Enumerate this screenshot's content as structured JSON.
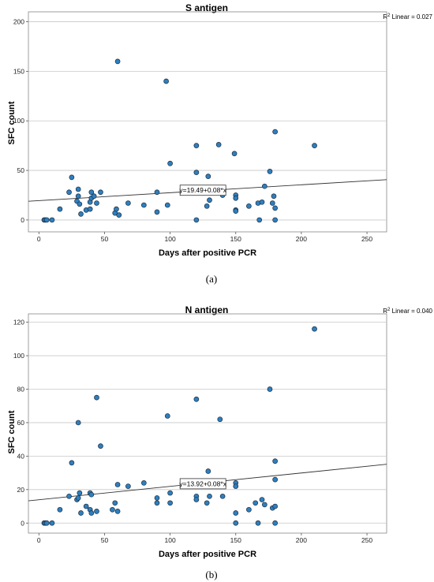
{
  "chart_data": [
    {
      "type": "scatter",
      "title": "S antigen",
      "panel_label": "(a)",
      "xlabel": "Days after positive PCR",
      "ylabel": "SFC count",
      "xlim": [
        -8,
        265
      ],
      "ylim": [
        -12,
        210
      ],
      "xticks": [
        0,
        50,
        100,
        150,
        200,
        250
      ],
      "yticks": [
        0,
        50,
        100,
        150,
        200
      ],
      "grid": "horizontal",
      "r2_prefix": "R",
      "r2_suffix": " Linear = 0.027",
      "fit": {
        "intercept": 19.49,
        "slope": 0.08,
        "label": "y=19.49+0.08*x",
        "label_x": 125,
        "label_y": 30
      },
      "points": [
        [
          4,
          0
        ],
        [
          5,
          0
        ],
        [
          6,
          0
        ],
        [
          10,
          0
        ],
        [
          16,
          11
        ],
        [
          23,
          28
        ],
        [
          25,
          43
        ],
        [
          29,
          19
        ],
        [
          30,
          24
        ],
        [
          30,
          31
        ],
        [
          31,
          16
        ],
        [
          32,
          6
        ],
        [
          36,
          10
        ],
        [
          39,
          11
        ],
        [
          39,
          18
        ],
        [
          40,
          28
        ],
        [
          40,
          22
        ],
        [
          42,
          24
        ],
        [
          44,
          17
        ],
        [
          47,
          28
        ],
        [
          58,
          7
        ],
        [
          59,
          11
        ],
        [
          60,
          160
        ],
        [
          61,
          5
        ],
        [
          68,
          17
        ],
        [
          80,
          15
        ],
        [
          90,
          8
        ],
        [
          90,
          28
        ],
        [
          97,
          140
        ],
        [
          98,
          15
        ],
        [
          100,
          57
        ],
        [
          120,
          48
        ],
        [
          120,
          75
        ],
        [
          120,
          0
        ],
        [
          128,
          14
        ],
        [
          129,
          44
        ],
        [
          130,
          20
        ],
        [
          137,
          76
        ],
        [
          140,
          25
        ],
        [
          149,
          67
        ],
        [
          150,
          25
        ],
        [
          150,
          22
        ],
        [
          150,
          10
        ],
        [
          150,
          9
        ],
        [
          160,
          14
        ],
        [
          167,
          17
        ],
        [
          168,
          0
        ],
        [
          170,
          18
        ],
        [
          172,
          34
        ],
        [
          176,
          49
        ],
        [
          178,
          17
        ],
        [
          179,
          24
        ],
        [
          180,
          0
        ],
        [
          180,
          12
        ],
        [
          180,
          89
        ],
        [
          210,
          75
        ]
      ]
    },
    {
      "type": "scatter",
      "title": "N antigen",
      "panel_label": "(b)",
      "xlabel": "Days after positive PCR",
      "ylabel": "SFC count",
      "xlim": [
        -8,
        265
      ],
      "ylim": [
        -6,
        125
      ],
      "xticks": [
        0,
        50,
        100,
        150,
        200,
        250
      ],
      "yticks": [
        0,
        20,
        40,
        60,
        80,
        100,
        120
      ],
      "grid": "horizontal",
      "r2_prefix": "R",
      "r2_suffix": " Linear = 0.040",
      "fit": {
        "intercept": 13.92,
        "slope": 0.08,
        "label": "y=13.92+0.08*x",
        "label_x": 125,
        "label_y": 23.5
      },
      "points": [
        [
          4,
          0
        ],
        [
          5,
          0
        ],
        [
          6,
          0
        ],
        [
          10,
          0
        ],
        [
          16,
          8
        ],
        [
          23,
          16
        ],
        [
          25,
          36
        ],
        [
          29,
          14
        ],
        [
          30,
          15
        ],
        [
          30,
          60
        ],
        [
          31,
          18
        ],
        [
          32,
          6
        ],
        [
          36,
          10
        ],
        [
          39,
          8
        ],
        [
          39,
          18
        ],
        [
          40,
          6
        ],
        [
          40,
          17
        ],
        [
          44,
          75
        ],
        [
          44,
          7
        ],
        [
          47,
          46
        ],
        [
          56,
          8
        ],
        [
          58,
          12
        ],
        [
          60,
          7
        ],
        [
          60,
          23
        ],
        [
          68,
          22
        ],
        [
          80,
          24
        ],
        [
          90,
          12
        ],
        [
          90,
          15
        ],
        [
          98,
          64
        ],
        [
          100,
          12
        ],
        [
          100,
          18
        ],
        [
          120,
          74
        ],
        [
          120,
          16
        ],
        [
          120,
          14
        ],
        [
          128,
          12
        ],
        [
          129,
          31
        ],
        [
          130,
          16
        ],
        [
          138,
          62
        ],
        [
          140,
          16
        ],
        [
          150,
          24
        ],
        [
          150,
          22
        ],
        [
          150,
          6
        ],
        [
          150,
          0
        ],
        [
          160,
          8
        ],
        [
          165,
          12
        ],
        [
          167,
          0
        ],
        [
          170,
          14
        ],
        [
          172,
          11
        ],
        [
          176,
          80
        ],
        [
          178,
          9
        ],
        [
          180,
          37
        ],
        [
          180,
          26
        ],
        [
          180,
          10
        ],
        [
          180,
          0
        ],
        [
          210,
          116
        ]
      ]
    }
  ]
}
